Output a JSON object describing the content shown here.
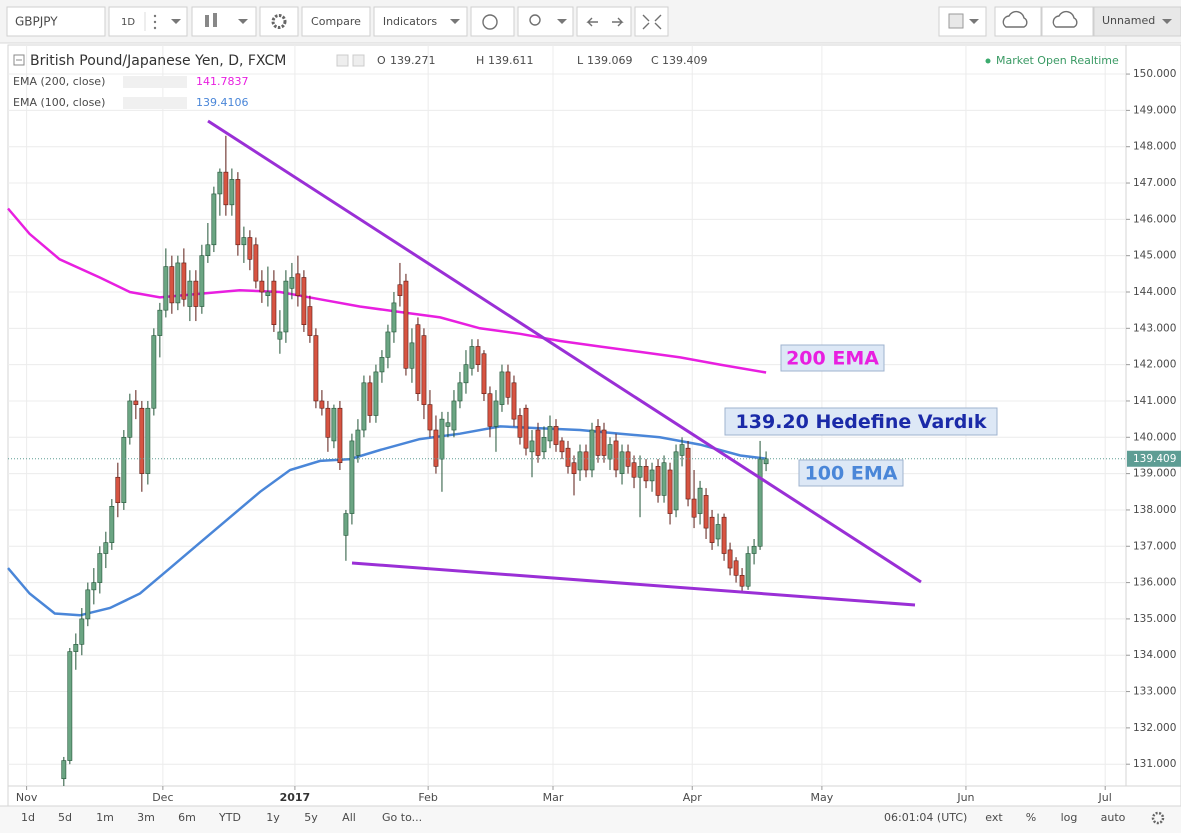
{
  "toolbar": {
    "symbol": "GBPJPY",
    "interval": "1D",
    "compare": "Compare",
    "indicators": "Indicators",
    "layout": "Unnamed"
  },
  "chart_data": {
    "type": "candlestick",
    "title": "British Pound/Japanese Yen, D, FXCM",
    "status": "Market Open Realtime",
    "ohlc_labels": [
      "O",
      "H",
      "L",
      "C"
    ],
    "open": [
      130.6,
      131.1,
      134.1,
      134.3,
      135.0,
      135.8,
      136.0,
      136.8,
      137.1,
      138.9,
      138.2,
      140.0,
      141.0,
      140.8,
      139.0,
      140.8,
      142.8,
      143.5,
      144.7,
      143.7,
      144.8,
      143.6,
      144.3,
      143.6,
      145.0,
      145.3,
      146.7,
      147.3,
      146.4,
      147.1,
      145.3,
      145.5,
      145.3,
      144.3,
      143.9,
      144.3,
      142.7,
      142.9,
      144.1,
      144.5,
      144.4,
      143.6,
      142.8,
      141.0,
      140.8,
      139.9,
      140.8,
      137.3,
      137.9,
      139.5,
      140.2,
      141.5,
      140.6,
      141.8,
      142.2,
      142.9,
      144.2,
      144.3,
      141.9,
      143.1,
      142.8,
      140.9,
      140.2,
      139.4,
      140.3,
      140.2,
      141.0,
      141.5,
      141.9,
      142.5,
      142.3,
      141.2,
      140.3,
      140.9,
      141.8,
      141.5,
      140.6,
      140.8,
      139.6,
      140.2,
      139.6,
      139.9,
      140.3,
      139.9,
      139.7,
      139.3,
      139.1,
      139.6,
      139.1,
      140.3,
      140.2,
      139.4,
      139.9,
      139.0,
      139.6,
      139.3,
      138.9,
      139.2,
      138.8,
      139.2,
      138.4,
      139.1,
      138.0,
      139.5,
      139.7,
      138.3,
      137.9,
      138.4,
      137.8,
      137.2,
      137.8,
      136.9,
      136.6,
      136.2,
      135.9,
      136.8,
      137.0,
      139.271
    ],
    "high": [
      131.2,
      134.2,
      134.6,
      135.3,
      136.0,
      136.4,
      137.0,
      137.4,
      138.3,
      139.3,
      140.2,
      141.2,
      141.3,
      141.0,
      141.0,
      143.0,
      143.7,
      145.2,
      145.0,
      145.0,
      145.2,
      144.6,
      144.6,
      145.3,
      145.9,
      146.9,
      147.4,
      148.3,
      147.4,
      147.3,
      145.8,
      145.7,
      145.5,
      144.6,
      144.7,
      144.6,
      143.5,
      144.6,
      144.8,
      145.0,
      144.6,
      143.9,
      143.0,
      141.3,
      141.0,
      140.9,
      141.0,
      138.0,
      140.1,
      140.5,
      141.7,
      141.7,
      142.0,
      142.4,
      143.1,
      144.0,
      144.8,
      144.5,
      143.0,
      143.3,
      143.0,
      141.3,
      140.6,
      140.7,
      140.7,
      141.3,
      141.8,
      142.4,
      142.7,
      142.7,
      142.4,
      141.4,
      141.3,
      142.0,
      142.0,
      141.7,
      140.8,
      140.9,
      140.2,
      140.4,
      140.3,
      140.6,
      140.5,
      140.0,
      139.9,
      139.5,
      139.8,
      139.8,
      140.4,
      140.5,
      140.4,
      140.0,
      140.1,
      139.8,
      139.8,
      139.5,
      139.5,
      139.4,
      139.3,
      139.4,
      139.5,
      139.3,
      139.8,
      140.0,
      139.9,
      139.1,
      138.8,
      138.6,
      138.0,
      137.9,
      137.9,
      137.1,
      136.7,
      136.4,
      137.0,
      137.2,
      139.9,
      139.611
    ],
    "low": [
      130.4,
      131.0,
      133.6,
      134.0,
      134.8,
      135.4,
      135.7,
      136.4,
      136.9,
      137.8,
      138.0,
      139.8,
      140.5,
      138.5,
      138.7,
      140.6,
      142.2,
      143.3,
      143.4,
      143.5,
      143.6,
      143.2,
      143.2,
      143.4,
      144.8,
      145.1,
      146.1,
      146.1,
      146.1,
      145.0,
      144.8,
      144.6,
      144.1,
      143.7,
      143.6,
      142.9,
      142.3,
      142.6,
      143.8,
      143.6,
      142.9,
      142.6,
      140.8,
      140.6,
      139.6,
      139.7,
      139.1,
      136.6,
      137.6,
      139.3,
      140.0,
      140.4,
      140.4,
      141.5,
      141.9,
      142.6,
      143.6,
      141.7,
      141.5,
      141.0,
      140.5,
      140.0,
      139.0,
      138.5,
      140.0,
      140.0,
      140.8,
      141.2,
      141.7,
      141.8,
      141.0,
      140.0,
      139.6,
      140.7,
      140.9,
      140.3,
      139.8,
      139.5,
      138.9,
      139.3,
      139.4,
      139.7,
      139.6,
      139.4,
      139.0,
      138.4,
      138.8,
      138.9,
      138.9,
      139.3,
      139.3,
      139.1,
      138.9,
      138.7,
      139.0,
      138.6,
      137.8,
      138.6,
      138.5,
      138.2,
      138.2,
      137.6,
      137.8,
      139.2,
      138.1,
      137.5,
      137.6,
      137.2,
      136.9,
      137.0,
      136.6,
      136.2,
      136.0,
      135.7,
      135.8,
      136.5,
      136.9,
      139.069
    ],
    "close": [
      131.1,
      134.1,
      134.3,
      135.0,
      135.8,
      136.0,
      136.8,
      137.1,
      138.1,
      138.2,
      140.0,
      141.0,
      140.9,
      139.0,
      140.8,
      142.8,
      143.5,
      144.7,
      143.7,
      144.8,
      143.8,
      144.3,
      143.6,
      145.0,
      145.3,
      146.7,
      147.3,
      146.4,
      147.1,
      145.3,
      145.5,
      144.9,
      144.3,
      144.0,
      144.0,
      143.1,
      142.9,
      144.3,
      144.4,
      143.9,
      143.1,
      142.8,
      141.0,
      140.8,
      140.0,
      140.8,
      139.3,
      137.9,
      139.9,
      140.2,
      141.5,
      140.6,
      141.8,
      142.2,
      142.9,
      143.7,
      143.9,
      141.9,
      142.6,
      141.2,
      140.9,
      140.2,
      139.2,
      140.5,
      140.4,
      141.0,
      141.5,
      142.0,
      142.5,
      142.0,
      141.2,
      140.3,
      141.0,
      141.8,
      141.1,
      140.5,
      140.0,
      139.7,
      139.9,
      139.5,
      140.0,
      140.3,
      139.8,
      139.6,
      139.2,
      139.0,
      139.6,
      139.1,
      140.2,
      139.5,
      139.5,
      139.8,
      139.1,
      139.6,
      139.2,
      138.9,
      139.2,
      138.8,
      139.1,
      138.4,
      139.3,
      137.9,
      139.6,
      139.8,
      138.3,
      137.8,
      138.6,
      137.5,
      137.1,
      137.6,
      136.8,
      136.4,
      136.2,
      135.9,
      136.8,
      137.0,
      139.4,
      139.409
    ],
    "up_color": "#6ba583",
    "down_color": "#d75442",
    "indicators": [
      {
        "name": "EMA (200, close)",
        "color": "#e81fe0",
        "x": [
          -9.3,
          -5.7,
          -0.7,
          6,
          11,
          16,
          22.7,
          29.3,
          36,
          42.7,
          49.3,
          56,
          62.7,
          69.3,
          76,
          82.7,
          89.3,
          96,
          102.7,
          109.3,
          117
        ],
        "values": [
          146.3,
          145.6,
          144.9,
          144.4,
          144.0,
          143.85,
          143.95,
          144.05,
          144.0,
          143.8,
          143.6,
          143.45,
          143.3,
          143.0,
          142.85,
          142.65,
          142.5,
          142.35,
          142.2,
          142.0,
          141.7837
        ]
      },
      {
        "name": "EMA (100, close)",
        "color": "#4a86d8",
        "x": [
          -9.3,
          -5.7,
          -1.5,
          2.7,
          7.7,
          12.7,
          17.7,
          22.7,
          27.7,
          32.7,
          37.7,
          42.7,
          47.7,
          52.7,
          59.3,
          66,
          72.7,
          79.3,
          86,
          92.7,
          99.3,
          106,
          112.7,
          117
        ],
        "values": [
          136.4,
          135.7,
          135.15,
          135.1,
          135.3,
          135.7,
          136.4,
          137.1,
          137.8,
          138.5,
          139.1,
          139.35,
          139.4,
          139.65,
          139.95,
          140.1,
          140.3,
          140.25,
          140.2,
          140.1,
          140.0,
          139.8,
          139.5,
          139.4106
        ]
      }
    ],
    "annotations": [
      {
        "text": "200 EMA",
        "color": "#e81fe0"
      },
      {
        "text": "139.20 Hedefine Vardık",
        "color": "#1a2aa8"
      },
      {
        "text": "100 EMA",
        "color": "#4a86d8"
      }
    ],
    "xlim": [
      -9.3,
      176.8
    ],
    "xticks": [
      {
        "value": -6.2,
        "label": "Nov"
      },
      {
        "value": 16.5,
        "label": "Dec"
      },
      {
        "value": 38.5,
        "label": "2017"
      },
      {
        "value": 60.7,
        "label": "Feb"
      },
      {
        "value": 81.5,
        "label": "Mar"
      },
      {
        "value": 104.7,
        "label": "Apr"
      },
      {
        "value": 126.3,
        "label": "May"
      },
      {
        "value": 150.3,
        "label": "Jun"
      },
      {
        "value": 173.5,
        "label": "Jul"
      }
    ],
    "ylim": [
      130.4,
      150.8
    ],
    "yticks": [
      {
        "value": 131,
        "label": "131.000"
      },
      {
        "value": 132,
        "label": "132.000"
      },
      {
        "value": 133,
        "label": "133.000"
      },
      {
        "value": 134,
        "label": "134.000"
      },
      {
        "value": 135,
        "label": "135.000"
      },
      {
        "value": 136,
        "label": "136.000"
      },
      {
        "value": 137,
        "label": "137.000"
      },
      {
        "value": 138,
        "label": "138.000"
      },
      {
        "value": 139,
        "label": "139.000"
      },
      {
        "value": 140,
        "label": "140.000"
      },
      {
        "value": 141,
        "label": "141.000"
      },
      {
        "value": 142,
        "label": "142.000"
      },
      {
        "value": 143,
        "label": "143.000"
      },
      {
        "value": 144,
        "label": "144.000"
      },
      {
        "value": 145,
        "label": "145.000"
      },
      {
        "value": 146,
        "label": "146.000"
      },
      {
        "value": 147,
        "label": "147.000"
      },
      {
        "value": 148,
        "label": "148.000"
      },
      {
        "value": 149,
        "label": "149.000"
      },
      {
        "value": 150,
        "label": "150.000"
      }
    ],
    "grid": true
  },
  "footer": {
    "ranges": [
      "1d",
      "5d",
      "1m",
      "3m",
      "6m",
      "YTD",
      "1y",
      "5y",
      "All"
    ],
    "goto": "Go to...",
    "clock": "06:01:04 (UTC)",
    "options": [
      "ext",
      "%",
      "log",
      "auto"
    ]
  }
}
